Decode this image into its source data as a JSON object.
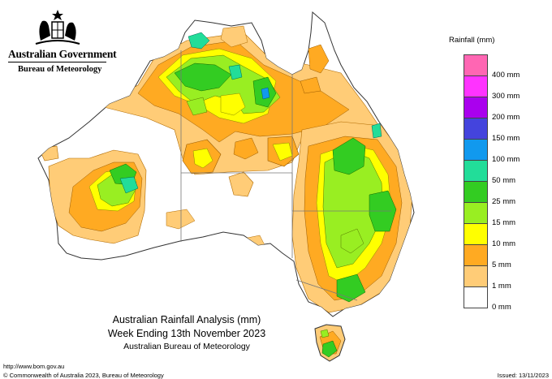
{
  "header": {
    "gov_title": "Australian Government",
    "gov_subtitle": "Bureau of Meteorology",
    "crest_icon": "coat-of-arms-icon"
  },
  "legend": {
    "title": "Rainfall (mm)",
    "items": [
      {
        "label": "",
        "color": "#ff66b3"
      },
      {
        "label": "400 mm",
        "color": "#ff33ff"
      },
      {
        "label": "300 mm",
        "color": "#aa00ee"
      },
      {
        "label": "200 mm",
        "color": "#4444dd"
      },
      {
        "label": "150 mm",
        "color": "#1199ee"
      },
      {
        "label": "100 mm",
        "color": "#22dd99"
      },
      {
        "label": "50 mm",
        "color": "#33cc22"
      },
      {
        "label": "25 mm",
        "color": "#99ee22"
      },
      {
        "label": "15 mm",
        "color": "#ffff00"
      },
      {
        "label": "10 mm",
        "color": "#ffaa22"
      },
      {
        "label": "5 mm",
        "color": "#ffcc77"
      },
      {
        "label": "1 mm",
        "color": "#ffffff"
      },
      {
        "label": "0 mm",
        "color": ""
      }
    ]
  },
  "caption": {
    "line1": "Australian Rainfall Analysis (mm)",
    "line2": "Week Ending 13th November 2023",
    "line3": "Australian Bureau of Meteorology"
  },
  "footer": {
    "url": "http://www.bom.gov.au",
    "copyright": "© Commonwealth of Australia 2023, Bureau of Meteorology",
    "issued": "Issued: 13/11/2023"
  }
}
